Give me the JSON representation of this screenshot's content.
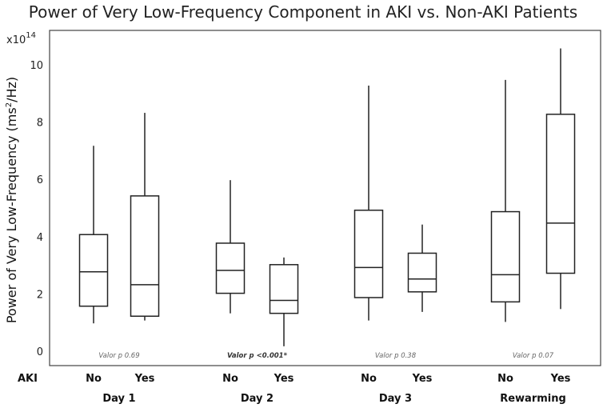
{
  "chart_data": {
    "type": "boxplot",
    "title": "Power of Very Low-Frequency Component in AKI vs. Non-AKI Patients",
    "ylabel_prefix": "Power of Very Low-Frequency (ms",
    "ylabel_sup": "2",
    "ylabel_suffix": "/Hz)",
    "y_multiplier_base": "x10",
    "y_multiplier_exp": "14",
    "ylim": [
      -0.2,
      11
    ],
    "yticks": [
      "0",
      "2",
      "4",
      "6",
      "8",
      "10"
    ],
    "ytick_values": [
      0,
      2,
      4,
      6,
      8,
      10
    ],
    "row_label": "AKI",
    "groups": [
      {
        "name": "Day 1",
        "p_value": "Valor p 0.69",
        "significant": false,
        "boxes": [
          {
            "label": "No",
            "min": 1.0,
            "q1": 1.6,
            "median": 2.8,
            "q3": 4.1,
            "max": 7.2
          },
          {
            "label": "Yes",
            "min": 1.1,
            "q1": 1.25,
            "median": 2.35,
            "q3": 5.45,
            "max": 8.35
          }
        ]
      },
      {
        "name": "Day 2",
        "p_value": "Valor p <0.001*",
        "significant": true,
        "boxes": [
          {
            "label": "No",
            "min": 1.35,
            "q1": 2.05,
            "median": 2.85,
            "q3": 3.8,
            "max": 6.0
          },
          {
            "label": "Yes",
            "min": 0.2,
            "q1": 1.35,
            "median": 1.8,
            "q3": 3.05,
            "max": 3.3
          }
        ]
      },
      {
        "name": "Day 3",
        "p_value": "Valor p 0.38",
        "significant": false,
        "boxes": [
          {
            "label": "No",
            "min": 1.1,
            "q1": 1.9,
            "median": 2.95,
            "q3": 4.95,
            "max": 9.3
          },
          {
            "label": "Yes",
            "min": 1.4,
            "q1": 2.1,
            "median": 2.55,
            "q3": 3.45,
            "max": 4.45
          }
        ]
      },
      {
        "name": "Rewarming",
        "p_value": "Valor p 0.07",
        "significant": false,
        "boxes": [
          {
            "label": "No",
            "min": 1.05,
            "q1": 1.75,
            "median": 2.7,
            "q3": 4.9,
            "max": 9.5
          },
          {
            "label": "Yes",
            "min": 1.5,
            "q1": 2.75,
            "median": 4.5,
            "q3": 8.3,
            "max": 10.6
          }
        ]
      }
    ]
  }
}
